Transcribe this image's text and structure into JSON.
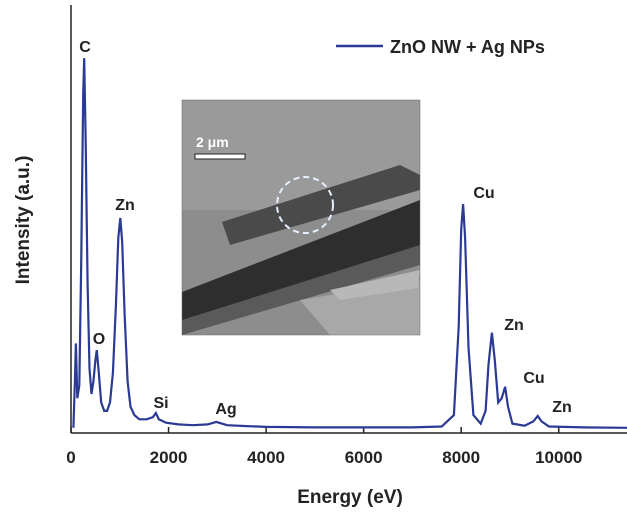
{
  "chart_data": {
    "type": "line",
    "xlabel": "Energy (eV)",
    "ylabel": "Intensity (a.u.)",
    "xlim": [
      0,
      11400
    ],
    "ylim": [
      0,
      100
    ],
    "xticks": [
      0,
      2000,
      4000,
      6000,
      8000,
      10000
    ],
    "legend": "upper right",
    "series": [
      {
        "name": "ZnO NW + Ag NPs",
        "color": "#2b3a94",
        "x": [
          50,
          80,
          100,
          130,
          170,
          210,
          250,
          270,
          300,
          340,
          380,
          420,
          460,
          500,
          530,
          570,
          620,
          680,
          740,
          800,
          860,
          920,
          970,
          1010,
          1050,
          1100,
          1160,
          1220,
          1300,
          1400,
          1550,
          1680,
          1740,
          1800,
          1950,
          2200,
          2500,
          2800,
          2980,
          3200,
          3600,
          4000,
          5000,
          6000,
          7000,
          7600,
          7850,
          7950,
          8000,
          8040,
          8080,
          8150,
          8250,
          8400,
          8500,
          8560,
          8630,
          8690,
          8760,
          8830,
          8900,
          8960,
          9050,
          9300,
          9480,
          9570,
          9650,
          9800,
          10500,
          11400
        ],
        "values": [
          1,
          12,
          21,
          8,
          11,
          40,
          80,
          88.6,
          70,
          35,
          15,
          9,
          12,
          17,
          19.4,
          14,
          7,
          5,
          5,
          7,
          14,
          30,
          46,
          50.7,
          45,
          28,
          12,
          6,
          4,
          3,
          3,
          3.5,
          4.5,
          3,
          2.2,
          1.8,
          1.6,
          1.8,
          2.4,
          1.6,
          1.4,
          1.2,
          1.1,
          1.1,
          1.1,
          1.3,
          4,
          25,
          48,
          54,
          46,
          20,
          4,
          2,
          5,
          16,
          23.5,
          17,
          7,
          8,
          10.7,
          6,
          2,
          1.5,
          2.5,
          3.8,
          2.5,
          1.3,
          1.1,
          1
        ]
      }
    ],
    "annotations": [
      "C",
      "O",
      "Zn",
      "Si",
      "Ag",
      "Cu",
      "Zn",
      "Cu",
      "Zn"
    ],
    "inset_scale": "2 μm"
  }
}
